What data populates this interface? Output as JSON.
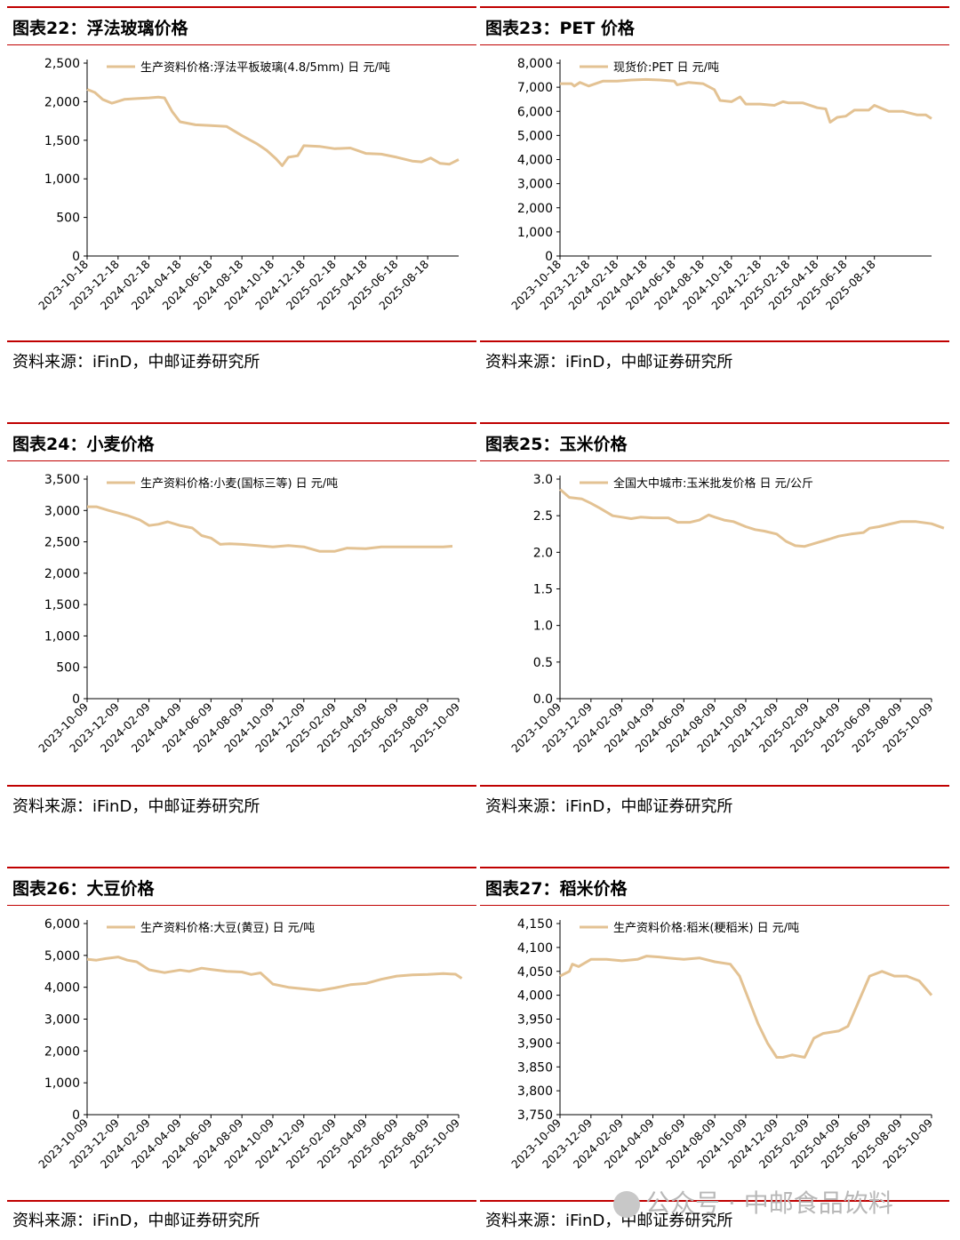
{
  "colors": {
    "line": "#e3c293",
    "rule": "#c00000"
  },
  "watermark": {
    "text": "公众号 · 中邮食品饮料",
    "icon": "wechat-icon"
  },
  "charts": [
    {
      "title": "图表22：浮法玻璃价格",
      "source": "资料来源：iFinD，中邮证券研究所",
      "chart_data": {
        "type": "line",
        "legend": "生产资料价格:浮法平板玻璃(4.8/5mm)  日  元/吨",
        "x_ticks": [
          "2023-10-18",
          "2023-12-18",
          "2024-02-18",
          "2024-04-18",
          "2024-06-18",
          "2024-08-18",
          "2024-10-18",
          "2024-12-18",
          "2025-02-18",
          "2025-04-18",
          "2025-06-18",
          "2025-08-18"
        ],
        "y_ticks": [
          "0",
          "500",
          "1,000",
          "1,500",
          "2,000",
          "2,500"
        ],
        "ylim": [
          0,
          2500
        ],
        "points": [
          [
            0,
            2160
          ],
          [
            0.25,
            2120
          ],
          [
            0.5,
            2030
          ],
          [
            0.8,
            1980
          ],
          [
            1.2,
            2030
          ],
          [
            1.6,
            2040
          ],
          [
            2.0,
            2050
          ],
          [
            2.3,
            2060
          ],
          [
            2.5,
            2050
          ],
          [
            2.75,
            1870
          ],
          [
            3.0,
            1740
          ],
          [
            3.5,
            1700
          ],
          [
            4.0,
            1690
          ],
          [
            4.5,
            1680
          ],
          [
            5.0,
            1560
          ],
          [
            5.5,
            1450
          ],
          [
            5.8,
            1370
          ],
          [
            6.1,
            1260
          ],
          [
            6.3,
            1170
          ],
          [
            6.5,
            1280
          ],
          [
            6.8,
            1300
          ],
          [
            7.0,
            1430
          ],
          [
            7.5,
            1420
          ],
          [
            8.0,
            1390
          ],
          [
            8.5,
            1400
          ],
          [
            9.0,
            1330
          ],
          [
            9.5,
            1320
          ],
          [
            10.0,
            1280
          ],
          [
            10.5,
            1230
          ],
          [
            10.8,
            1220
          ],
          [
            11.1,
            1270
          ],
          [
            11.4,
            1200
          ],
          [
            11.7,
            1190
          ],
          [
            12.0,
            1250
          ]
        ],
        "x_count": 12
      }
    },
    {
      "title": "图表23：PET 价格",
      "source": "资料来源：iFinD，中邮证券研究所",
      "chart_data": {
        "type": "line",
        "legend": "现货价:PET  日  元/吨",
        "x_ticks": [
          "2023-10-18",
          "2023-12-18",
          "2024-02-18",
          "2024-04-18",
          "2024-06-18",
          "2024-08-18",
          "2024-10-18",
          "2024-12-18",
          "2025-02-18",
          "2025-04-18",
          "2025-06-18",
          "2025-08-18"
        ],
        "y_ticks": [
          "0",
          "1,000",
          "2,000",
          "3,000",
          "4,000",
          "5,000",
          "6,000",
          "7,000",
          "8,000"
        ],
        "ylim": [
          0,
          8000
        ],
        "points": [
          [
            0,
            7150
          ],
          [
            0.4,
            7150
          ],
          [
            0.5,
            7050
          ],
          [
            0.7,
            7200
          ],
          [
            1.0,
            7050
          ],
          [
            1.5,
            7250
          ],
          [
            2.0,
            7250
          ],
          [
            2.5,
            7300
          ],
          [
            3.0,
            7320
          ],
          [
            3.5,
            7300
          ],
          [
            4.0,
            7250
          ],
          [
            4.1,
            7100
          ],
          [
            4.5,
            7200
          ],
          [
            5.0,
            7150
          ],
          [
            5.4,
            6900
          ],
          [
            5.6,
            6450
          ],
          [
            6.0,
            6400
          ],
          [
            6.3,
            6600
          ],
          [
            6.5,
            6300
          ],
          [
            7.0,
            6300
          ],
          [
            7.5,
            6250
          ],
          [
            7.8,
            6400
          ],
          [
            8.0,
            6350
          ],
          [
            8.5,
            6350
          ],
          [
            9.0,
            6150
          ],
          [
            9.3,
            6100
          ],
          [
            9.45,
            5550
          ],
          [
            9.7,
            5750
          ],
          [
            10.0,
            5800
          ],
          [
            10.3,
            6050
          ],
          [
            10.8,
            6050
          ],
          [
            11.0,
            6250
          ],
          [
            11.5,
            6000
          ],
          [
            12.0,
            6000
          ],
          [
            12.5,
            5850
          ],
          [
            12.8,
            5850
          ],
          [
            13.0,
            5700
          ]
        ],
        "x_count": 13
      }
    },
    {
      "title": "图表24：小麦价格",
      "source": "资料来源：iFinD，中邮证券研究所",
      "chart_data": {
        "type": "line",
        "legend": "生产资料价格:小麦(国标三等)  日  元/吨",
        "x_ticks": [
          "2023-10-09",
          "2023-12-09",
          "2024-02-09",
          "2024-04-09",
          "2024-06-09",
          "2024-08-09",
          "2024-10-09",
          "2024-12-09",
          "2025-02-09",
          "2025-04-09",
          "2025-06-09",
          "2025-08-09",
          "2025-10-09"
        ],
        "y_ticks": [
          "0",
          "500",
          "1,000",
          "1,500",
          "2,000",
          "2,500",
          "3,000",
          "3,500"
        ],
        "ylim": [
          0,
          3500
        ],
        "points": [
          [
            0,
            3060
          ],
          [
            0.3,
            3060
          ],
          [
            0.7,
            3000
          ],
          [
            1.0,
            2960
          ],
          [
            1.3,
            2920
          ],
          [
            1.7,
            2850
          ],
          [
            2.0,
            2760
          ],
          [
            2.3,
            2780
          ],
          [
            2.6,
            2820
          ],
          [
            3.0,
            2760
          ],
          [
            3.4,
            2720
          ],
          [
            3.7,
            2600
          ],
          [
            4.0,
            2560
          ],
          [
            4.3,
            2460
          ],
          [
            4.6,
            2470
          ],
          [
            5.0,
            2460
          ],
          [
            5.5,
            2440
          ],
          [
            6.0,
            2420
          ],
          [
            6.5,
            2440
          ],
          [
            7.0,
            2420
          ],
          [
            7.5,
            2350
          ],
          [
            8.0,
            2350
          ],
          [
            8.4,
            2400
          ],
          [
            9.0,
            2390
          ],
          [
            9.5,
            2420
          ],
          [
            10.0,
            2420
          ],
          [
            10.5,
            2420
          ],
          [
            11.0,
            2420
          ],
          [
            11.5,
            2420
          ],
          [
            11.8,
            2430
          ]
        ],
        "x_count": 12
      }
    },
    {
      "title": "图表25：玉米价格",
      "source": "资料来源：iFinD，中邮证券研究所",
      "chart_data": {
        "type": "line",
        "legend": "全国大中城市:玉米批发价格  日  元/公斤",
        "x_ticks": [
          "2023-10-09",
          "2023-12-09",
          "2024-02-09",
          "2024-04-09",
          "2024-06-09",
          "2024-08-09",
          "2024-10-09",
          "2024-12-09",
          "2025-02-09",
          "2025-04-09",
          "2025-06-09",
          "2025-08-09",
          "2025-10-09"
        ],
        "y_ticks": [
          "0.0",
          "0.5",
          "1.0",
          "1.5",
          "2.0",
          "2.5",
          "3.0"
        ],
        "ylim": [
          0,
          3.0
        ],
        "points": [
          [
            0,
            2.86
          ],
          [
            0.3,
            2.75
          ],
          [
            0.7,
            2.73
          ],
          [
            1.0,
            2.67
          ],
          [
            1.3,
            2.6
          ],
          [
            1.7,
            2.5
          ],
          [
            2.0,
            2.48
          ],
          [
            2.3,
            2.46
          ],
          [
            2.6,
            2.48
          ],
          [
            3.0,
            2.47
          ],
          [
            3.5,
            2.47
          ],
          [
            3.8,
            2.41
          ],
          [
            4.2,
            2.41
          ],
          [
            4.5,
            2.44
          ],
          [
            4.8,
            2.51
          ],
          [
            5.0,
            2.48
          ],
          [
            5.3,
            2.44
          ],
          [
            5.6,
            2.42
          ],
          [
            6.0,
            2.35
          ],
          [
            6.3,
            2.31
          ],
          [
            6.6,
            2.29
          ],
          [
            7.0,
            2.25
          ],
          [
            7.3,
            2.15
          ],
          [
            7.6,
            2.09
          ],
          [
            7.9,
            2.08
          ],
          [
            8.3,
            2.13
          ],
          [
            8.7,
            2.18
          ],
          [
            9.0,
            2.22
          ],
          [
            9.4,
            2.25
          ],
          [
            9.8,
            2.27
          ],
          [
            10.0,
            2.33
          ],
          [
            10.3,
            2.35
          ],
          [
            10.6,
            2.38
          ],
          [
            11.0,
            2.42
          ],
          [
            11.5,
            2.42
          ],
          [
            12.0,
            2.39
          ],
          [
            12.4,
            2.33
          ]
        ],
        "x_count": 12
      }
    },
    {
      "title": "图表26：大豆价格",
      "source": "资料来源：iFinD，中邮证券研究所",
      "chart_data": {
        "type": "line",
        "legend": "生产资料价格:大豆(黄豆)  日  元/吨",
        "x_ticks": [
          "2023-10-09",
          "2023-12-09",
          "2024-02-09",
          "2024-04-09",
          "2024-06-09",
          "2024-08-09",
          "2024-10-09",
          "2024-12-09",
          "2025-02-09",
          "2025-04-09",
          "2025-06-09",
          "2025-08-09",
          "2025-10-09"
        ],
        "y_ticks": [
          "0",
          "1,000",
          "2,000",
          "3,000",
          "4,000",
          "5,000",
          "6,000"
        ],
        "ylim": [
          0,
          6000
        ],
        "points": [
          [
            0,
            4880
          ],
          [
            0.3,
            4850
          ],
          [
            0.6,
            4900
          ],
          [
            1.0,
            4950
          ],
          [
            1.3,
            4850
          ],
          [
            1.6,
            4800
          ],
          [
            2.0,
            4550
          ],
          [
            2.5,
            4460
          ],
          [
            3.0,
            4540
          ],
          [
            3.3,
            4500
          ],
          [
            3.7,
            4600
          ],
          [
            4.0,
            4560
          ],
          [
            4.5,
            4500
          ],
          [
            5.0,
            4480
          ],
          [
            5.3,
            4400
          ],
          [
            5.6,
            4450
          ],
          [
            6.0,
            4100
          ],
          [
            6.5,
            4000
          ],
          [
            7.0,
            3950
          ],
          [
            7.5,
            3900
          ],
          [
            8.0,
            3980
          ],
          [
            8.5,
            4080
          ],
          [
            9.0,
            4120
          ],
          [
            9.5,
            4250
          ],
          [
            10.0,
            4350
          ],
          [
            10.5,
            4390
          ],
          [
            11.0,
            4400
          ],
          [
            11.5,
            4430
          ],
          [
            11.9,
            4410
          ],
          [
            12.1,
            4280
          ]
        ],
        "x_count": 12
      }
    },
    {
      "title": "图表27：稻米价格",
      "source": "资料来源：iFinD，中邮证券研究所",
      "chart_data": {
        "type": "line",
        "legend": "生产资料价格:稻米(粳稻米)  日  元/吨",
        "x_ticks": [
          "2023-10-09",
          "2023-12-09",
          "2024-02-09",
          "2024-04-09",
          "2024-06-09",
          "2024-08-09",
          "2024-10-09",
          "2024-12-09",
          "2025-02-09",
          "2025-04-09",
          "2025-06-09",
          "2025-08-09",
          "2025-10-09"
        ],
        "y_ticks": [
          "3,750",
          "3,800",
          "3,850",
          "3,900",
          "3,950",
          "4,000",
          "4,050",
          "4,100",
          "4,150"
        ],
        "ylim": [
          3750,
          4150
        ],
        "points": [
          [
            0,
            4040
          ],
          [
            0.3,
            4050
          ],
          [
            0.4,
            4065
          ],
          [
            0.6,
            4060
          ],
          [
            1.0,
            4075
          ],
          [
            1.5,
            4075
          ],
          [
            2.0,
            4072
          ],
          [
            2.5,
            4075
          ],
          [
            2.8,
            4082
          ],
          [
            3.2,
            4080
          ],
          [
            3.5,
            4078
          ],
          [
            4.0,
            4075
          ],
          [
            4.5,
            4078
          ],
          [
            5.0,
            4070
          ],
          [
            5.5,
            4065
          ],
          [
            5.8,
            4040
          ],
          [
            6.1,
            3990
          ],
          [
            6.4,
            3940
          ],
          [
            6.7,
            3900
          ],
          [
            7.0,
            3870
          ],
          [
            7.2,
            3870
          ],
          [
            7.5,
            3875
          ],
          [
            7.9,
            3870
          ],
          [
            8.2,
            3910
          ],
          [
            8.5,
            3920
          ],
          [
            9.0,
            3925
          ],
          [
            9.3,
            3935
          ],
          [
            9.6,
            3980
          ],
          [
            10.0,
            4040
          ],
          [
            10.4,
            4050
          ],
          [
            10.8,
            4040
          ],
          [
            11.2,
            4040
          ],
          [
            11.6,
            4030
          ],
          [
            12.0,
            4000
          ]
        ],
        "x_count": 12
      }
    }
  ]
}
